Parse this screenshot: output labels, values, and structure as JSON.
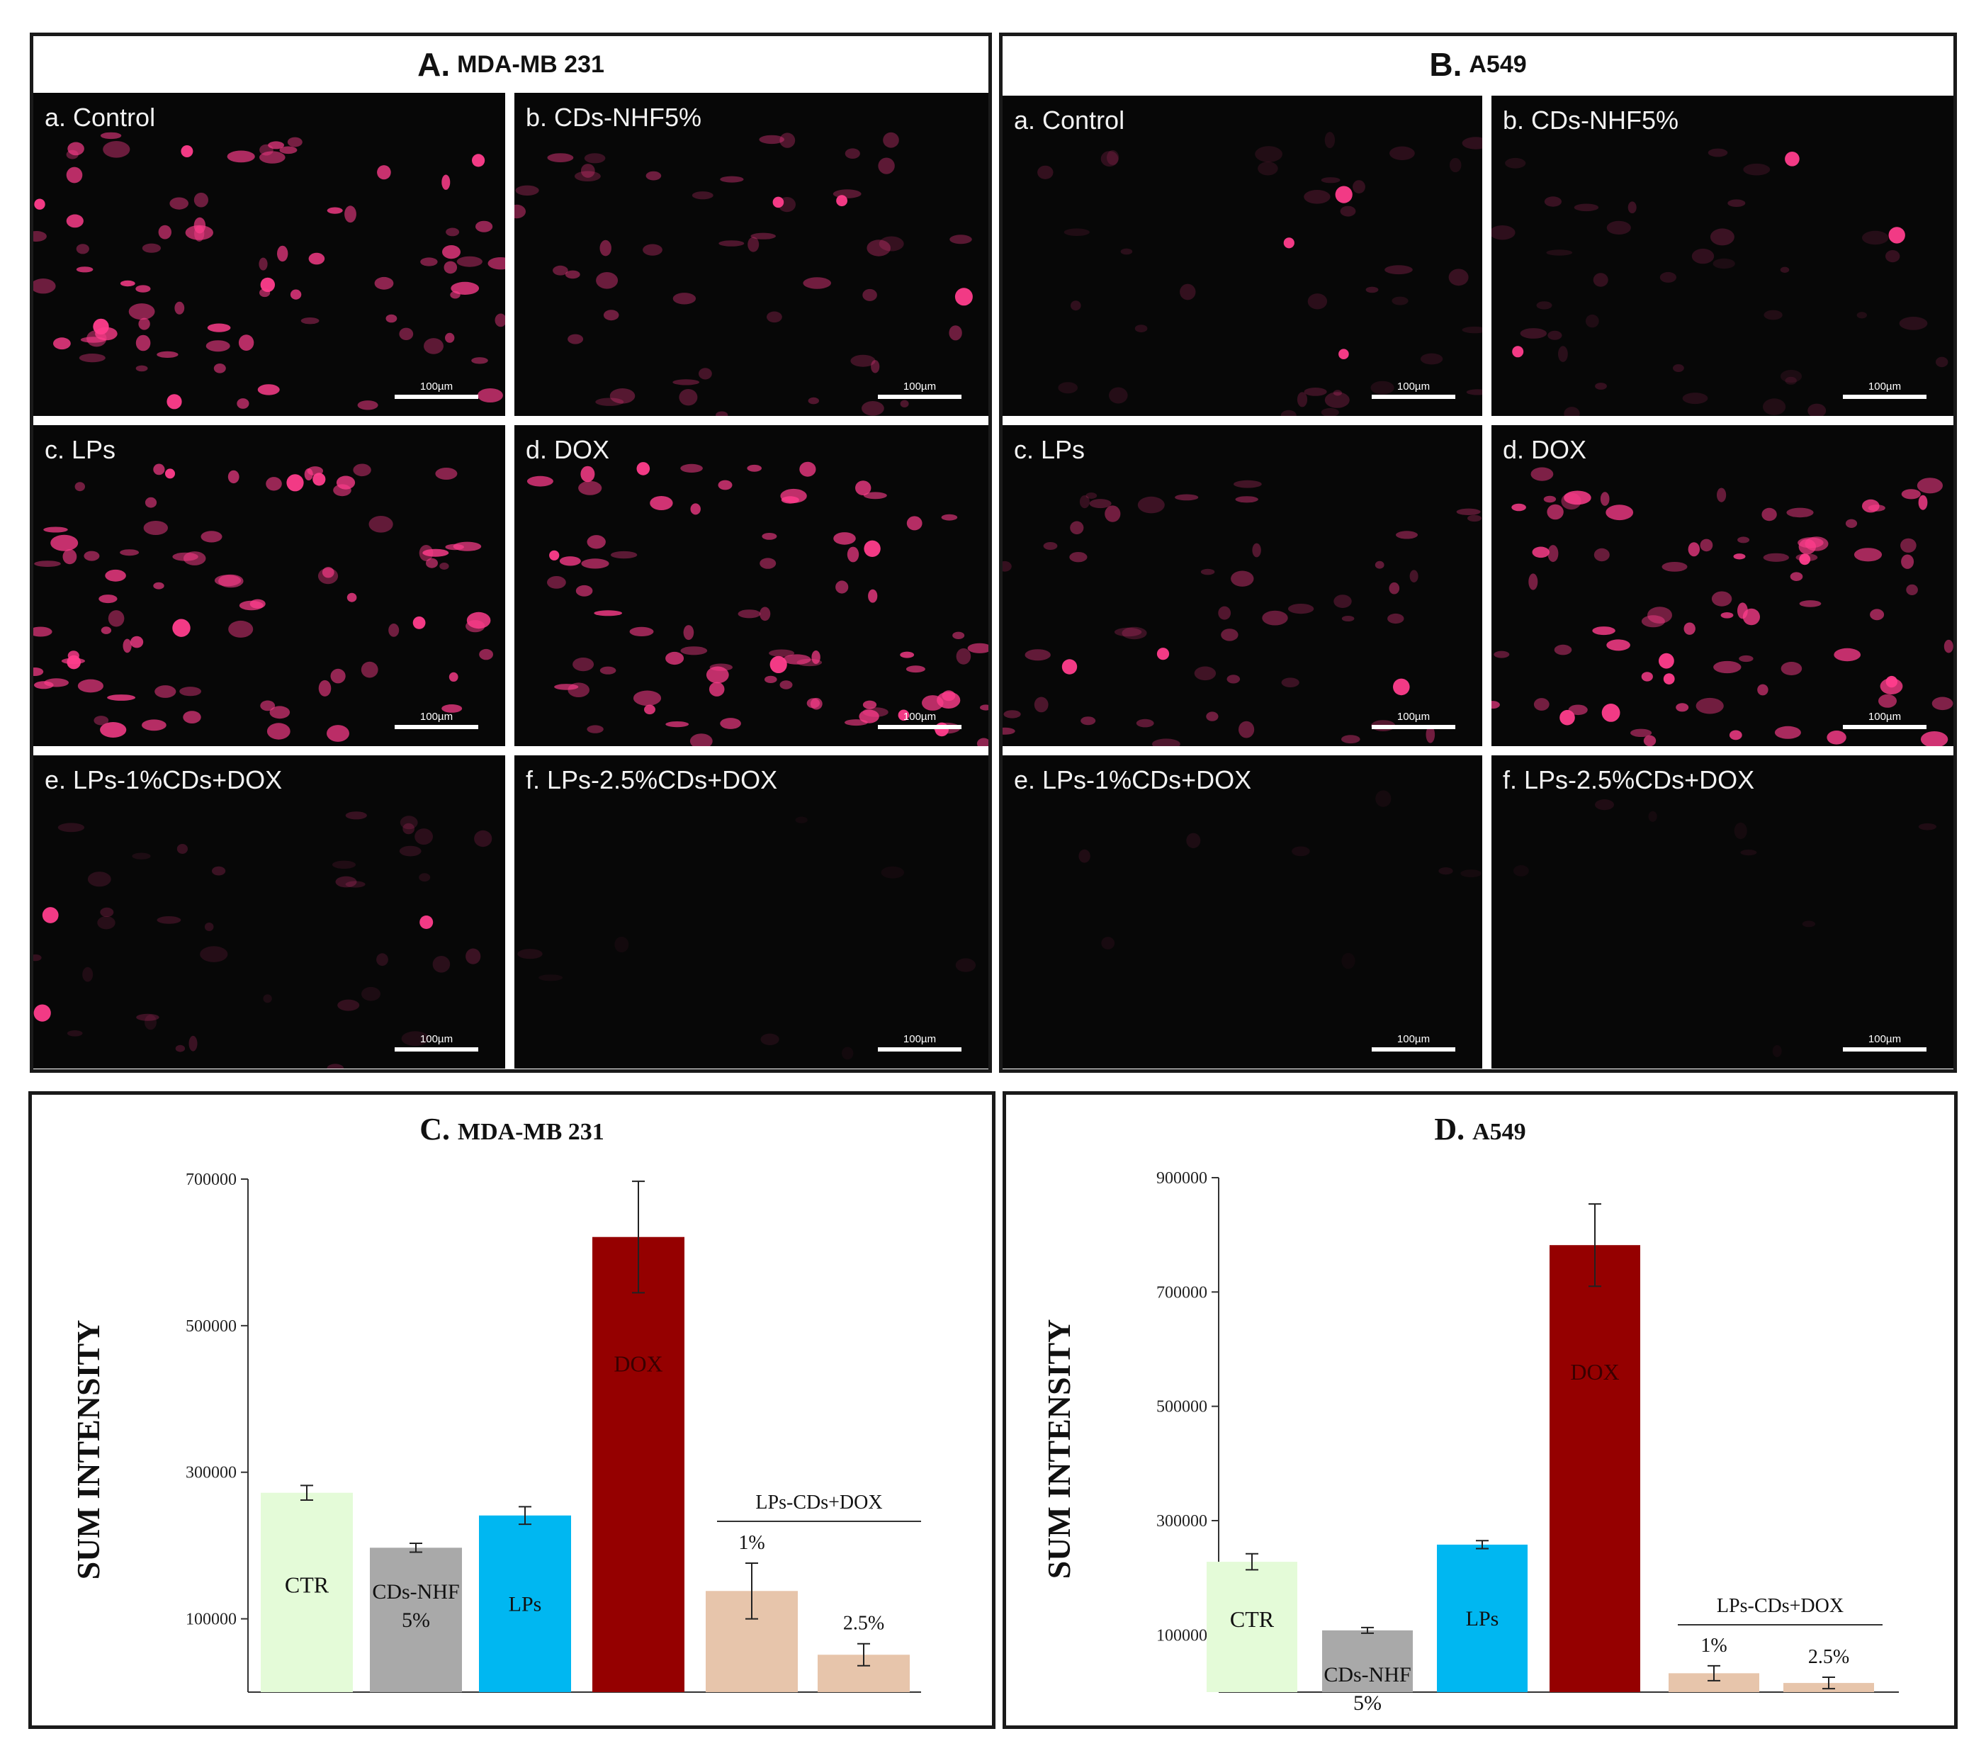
{
  "panels": {
    "A": {
      "letter": "A.",
      "cell": "MDA-MB 231"
    },
    "B": {
      "letter": "B.",
      "cell": "A549"
    },
    "C": {
      "letter": "C.",
      "cell": "MDA-MB 231"
    },
    "D": {
      "letter": "D.",
      "cell": "A549"
    }
  },
  "micrographs": {
    "A": [
      {
        "label": "a. Control",
        "brightness": "high"
      },
      {
        "label": "b. CDs-NHF5%",
        "brightness": "medium"
      },
      {
        "label": "c. LPs",
        "brightness": "high"
      },
      {
        "label": "d. DOX",
        "brightness": "high"
      },
      {
        "label": "e. LPs-1%CDs+DOX",
        "brightness": "low"
      },
      {
        "label": "f. LPs-2.5%CDs+DOX",
        "brightness": "very-low"
      }
    ],
    "B": [
      {
        "label": "a. Control",
        "brightness": "low"
      },
      {
        "label": "b. CDs-NHF5%",
        "brightness": "low"
      },
      {
        "label": "c. LPs",
        "brightness": "medium"
      },
      {
        "label": "d. DOX",
        "brightness": "high"
      },
      {
        "label": "e. LPs-1%CDs+DOX",
        "brightness": "very-low"
      },
      {
        "label": "f. LPs-2.5%CDs+DOX",
        "brightness": "very-low"
      }
    ],
    "scale_bar": "100µm",
    "stain_color": "#ff3d8c"
  },
  "chart_data": [
    {
      "type": "bar",
      "title": "C. MDA-MB 231",
      "ylabel": "SUM INTENSITY",
      "ylim": [
        0,
        700000
      ],
      "yticks": [
        "100000",
        "300000",
        "500000",
        "700000"
      ],
      "categories": [
        "CTR",
        "CDs-NHF 5%",
        "LPs",
        "DOX",
        "1%",
        "2.5%"
      ],
      "values": [
        272000,
        197000,
        241000,
        621000,
        138000,
        51000
      ],
      "errors": [
        10000,
        6000,
        12000,
        76000,
        38000,
        15000
      ],
      "colors": [
        "#e4fbd8",
        "#a9a9a9",
        "#00b7f1",
        "#950000",
        "#e7c5ab",
        "#e7c5ab"
      ],
      "group_label": "LPs-CDs+DOX"
    },
    {
      "type": "bar",
      "title": "D. A549",
      "ylabel": "SUM INTENSITY",
      "ylim": [
        0,
        900000
      ],
      "yticks": [
        "100000",
        "300000",
        "500000",
        "700000",
        "900000"
      ],
      "categories": [
        "CTR",
        "CDs-NHF 5%",
        "LPs",
        "DOX",
        "1%",
        "2.5%"
      ],
      "values": [
        228000,
        108000,
        258000,
        782000,
        33000,
        16000
      ],
      "errors": [
        14000,
        5000,
        7000,
        72000,
        13000,
        10000
      ],
      "colors": [
        "#e4fbd8",
        "#a9a9a9",
        "#00b7f1",
        "#950000",
        "#e7c5ab",
        "#e7c5ab"
      ],
      "group_label": "LPs-CDs+DOX"
    }
  ]
}
